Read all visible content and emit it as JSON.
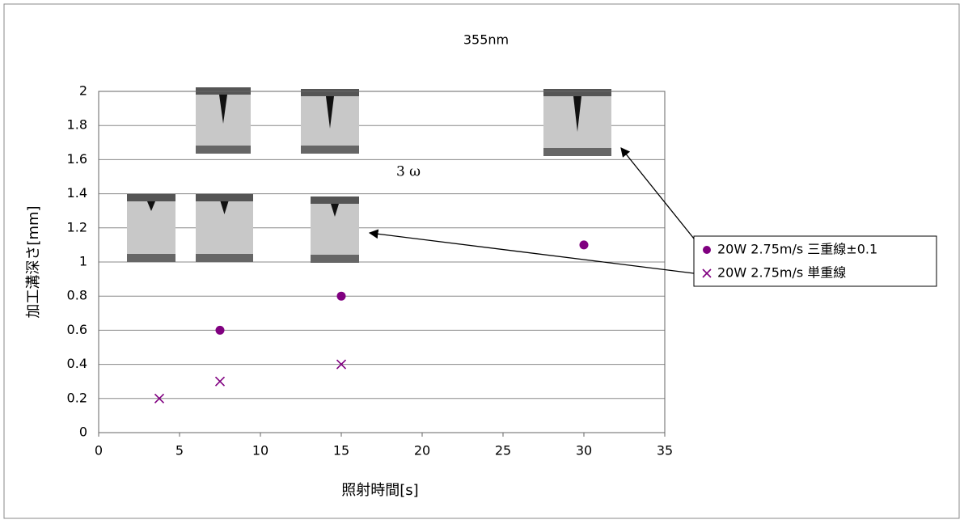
{
  "chart_data": {
    "type": "scatter",
    "title": "355nm",
    "x_label": "照射時間[s]",
    "y_label": "加工溝深さ[mm]",
    "annotations": [
      "3 ω"
    ],
    "series": [
      {
        "name": "20W 2.75m/s 三重線±0.1",
        "color": "#800080",
        "marker": "circle",
        "x": [
          7.5,
          15,
          30
        ],
        "values": [
          0.6,
          0.8,
          1.1
        ]
      },
      {
        "name": "20W 2.75m/s 単重線",
        "color": "#800080",
        "marker": "cross",
        "x": [
          3.75,
          7.5,
          15
        ],
        "values": [
          0.2,
          0.3,
          0.4
        ]
      }
    ],
    "xlim": [
      0,
      35
    ],
    "xticks": [
      0,
      5,
      10,
      15,
      20,
      25,
      30,
      35
    ],
    "ylim": [
      0,
      2
    ],
    "yticks": [
      0,
      0.2,
      0.4,
      0.6,
      0.8,
      1,
      1.2,
      1.4,
      1.6,
      1.8,
      2
    ],
    "grid": true,
    "legend": "right"
  }
}
